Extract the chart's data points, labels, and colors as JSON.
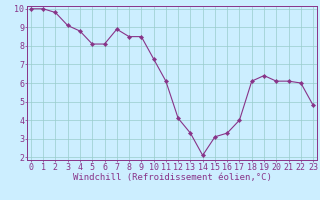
{
  "x": [
    0,
    1,
    2,
    3,
    4,
    5,
    6,
    7,
    8,
    9,
    10,
    11,
    12,
    13,
    14,
    15,
    16,
    17,
    18,
    19,
    20,
    21,
    22,
    23
  ],
  "y": [
    10.0,
    10.0,
    9.8,
    9.1,
    8.8,
    8.1,
    8.1,
    8.9,
    8.5,
    8.5,
    7.3,
    6.1,
    4.1,
    3.3,
    2.1,
    3.1,
    3.3,
    4.0,
    6.1,
    6.4,
    6.1,
    6.1,
    6.0,
    4.8
  ],
  "line_color": "#883388",
  "marker": "D",
  "marker_size": 2.2,
  "bg_color": "#cceeff",
  "grid_color": "#99cccc",
  "xlabel": "Windchill (Refroidissement éolien,°C)",
  "xlim_min": -0.3,
  "xlim_max": 23.3,
  "ylim_min": 1.85,
  "ylim_max": 10.15,
  "yticks": [
    2,
    3,
    4,
    5,
    6,
    7,
    8,
    9,
    10
  ],
  "xticks": [
    0,
    1,
    2,
    3,
    4,
    5,
    6,
    7,
    8,
    9,
    10,
    11,
    12,
    13,
    14,
    15,
    16,
    17,
    18,
    19,
    20,
    21,
    22,
    23
  ],
  "tick_color": "#883388",
  "label_color": "#883388",
  "spine_color": "#883388",
  "xlabel_fontsize": 6.5,
  "tick_fontsize": 6.0
}
